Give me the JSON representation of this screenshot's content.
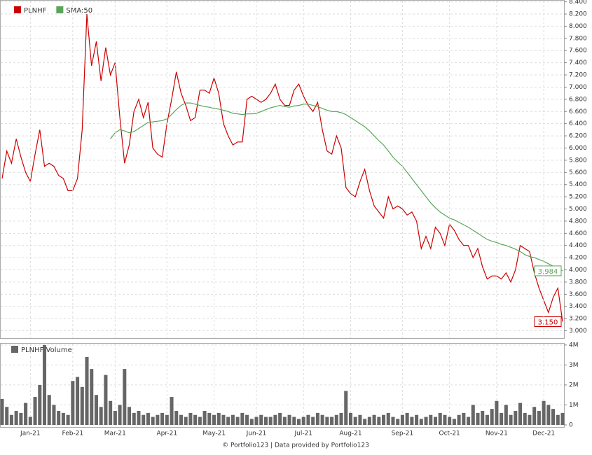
{
  "chart_data": [
    {
      "type": "line",
      "series": [
        {
          "name": "PLNHF",
          "color": "#cc0000",
          "values": [
            5.5,
            5.95,
            5.75,
            6.15,
            5.85,
            5.6,
            5.45,
            5.9,
            6.3,
            5.7,
            5.75,
            5.7,
            5.55,
            5.5,
            5.3,
            5.3,
            5.5,
            6.3,
            8.2,
            7.35,
            7.75,
            7.1,
            7.65,
            7.2,
            7.4,
            6.5,
            5.75,
            6.05,
            6.6,
            6.8,
            6.5,
            6.75,
            6.0,
            5.9,
            5.85,
            6.4,
            6.8,
            7.25,
            6.9,
            6.7,
            6.45,
            6.5,
            6.95,
            6.95,
            6.9,
            7.15,
            6.9,
            6.4,
            6.2,
            6.05,
            6.1,
            6.1,
            6.8,
            6.85,
            6.8,
            6.75,
            6.8,
            6.9,
            7.05,
            6.8,
            6.7,
            6.7,
            6.95,
            7.05,
            6.85,
            6.7,
            6.6,
            6.75,
            6.3,
            5.95,
            5.9,
            6.2,
            6.0,
            5.35,
            5.25,
            5.2,
            5.45,
            5.65,
            5.3,
            5.05,
            4.95,
            4.85,
            5.2,
            5.0,
            5.05,
            5.0,
            4.9,
            4.95,
            4.8,
            4.35,
            4.55,
            4.35,
            4.7,
            4.6,
            4.4,
            4.75,
            4.65,
            4.5,
            4.4,
            4.4,
            4.2,
            4.35,
            4.05,
            3.85,
            3.9,
            3.9,
            3.85,
            3.95,
            3.8,
            4.0,
            4.4,
            4.35,
            4.3,
            3.95,
            3.7,
            3.5,
            3.3,
            3.55,
            3.7,
            3.15
          ],
          "value_labels": [
            null,
            null,
            null,
            null,
            null,
            null,
            null,
            null,
            null,
            null,
            null,
            null,
            null,
            null,
            null,
            null,
            null,
            null,
            null,
            null,
            null,
            null,
            null,
            null,
            null,
            null,
            null,
            null,
            null,
            null,
            null,
            null,
            null,
            null,
            null,
            null,
            null,
            null,
            null,
            null,
            null,
            null,
            null,
            null,
            null,
            null,
            null,
            null,
            null,
            null,
            null,
            null,
            null,
            null,
            null,
            null,
            null,
            null,
            null,
            null,
            null,
            null,
            null,
            null,
            null,
            null,
            null,
            null,
            null,
            null,
            null,
            null,
            null,
            null,
            null,
            null,
            null,
            null,
            null,
            null,
            null,
            null,
            null,
            null,
            null,
            null,
            null,
            null,
            null,
            null,
            null,
            null,
            null,
            null,
            null,
            null,
            null,
            null,
            null,
            null,
            null,
            null,
            null,
            null,
            null,
            null,
            null,
            null,
            null,
            null,
            null,
            null,
            null,
            null,
            null,
            null,
            null,
            null,
            null,
            "3.150"
          ]
        },
        {
          "name": "SMA:50",
          "color": "#5aa55a",
          "values": [
            null,
            null,
            null,
            null,
            null,
            null,
            null,
            null,
            null,
            null,
            null,
            null,
            null,
            null,
            null,
            null,
            null,
            null,
            null,
            null,
            null,
            null,
            null,
            6.15,
            6.25,
            6.3,
            6.28,
            6.25,
            6.27,
            6.32,
            6.37,
            6.42,
            6.43,
            6.44,
            6.45,
            6.48,
            6.55,
            6.63,
            6.7,
            6.74,
            6.74,
            6.72,
            6.7,
            6.68,
            6.67,
            6.65,
            6.64,
            6.62,
            6.6,
            6.57,
            6.56,
            6.55,
            6.56,
            6.56,
            6.57,
            6.6,
            6.63,
            6.66,
            6.68,
            6.7,
            6.68,
            6.67,
            6.69,
            6.7,
            6.72,
            6.72,
            6.7,
            6.68,
            6.65,
            6.62,
            6.6,
            6.6,
            6.58,
            6.55,
            6.5,
            6.45,
            6.4,
            6.35,
            6.28,
            6.2,
            6.12,
            6.05,
            5.95,
            5.85,
            5.77,
            5.7,
            5.6,
            5.5,
            5.4,
            5.3,
            5.2,
            5.1,
            5.02,
            4.95,
            4.9,
            4.85,
            4.82,
            4.78,
            4.74,
            4.7,
            4.65,
            4.6,
            4.55,
            4.5,
            4.47,
            4.45,
            4.42,
            4.4,
            4.37,
            4.34,
            4.3,
            4.25,
            4.22,
            4.2,
            4.17,
            4.14,
            4.1,
            4.06,
            4.03,
            3.984
          ],
          "value_labels": [
            null,
            null,
            null,
            null,
            null,
            null,
            null,
            null,
            null,
            null,
            null,
            null,
            null,
            null,
            null,
            null,
            null,
            null,
            null,
            null,
            null,
            null,
            null,
            null,
            null,
            null,
            null,
            null,
            null,
            null,
            null,
            null,
            null,
            null,
            null,
            null,
            null,
            null,
            null,
            null,
            null,
            null,
            null,
            null,
            null,
            null,
            null,
            null,
            null,
            null,
            null,
            null,
            null,
            null,
            null,
            null,
            null,
            null,
            null,
            null,
            null,
            null,
            null,
            null,
            null,
            null,
            null,
            null,
            null,
            null,
            null,
            null,
            null,
            null,
            null,
            null,
            null,
            null,
            null,
            null,
            null,
            null,
            null,
            null,
            null,
            null,
            null,
            null,
            null,
            null,
            null,
            null,
            null,
            null,
            null,
            null,
            null,
            null,
            null,
            null,
            null,
            null,
            null,
            null,
            null,
            null,
            null,
            null,
            null,
            null,
            null,
            null,
            null,
            null,
            null,
            null,
            null,
            null,
            null,
            "3.984"
          ]
        }
      ],
      "ylim": [
        2.88,
        8.43
      ],
      "yticks": [
        {
          "value": 3,
          "label": "3.000"
        },
        {
          "value": 3.2,
          "label": "3.200"
        },
        {
          "value": 3.4,
          "label": "3.400"
        },
        {
          "value": 3.6,
          "label": "3.600"
        },
        {
          "value": 3.8,
          "label": "3.800"
        },
        {
          "value": 4,
          "label": "4.000"
        },
        {
          "value": 4.2,
          "label": "4.200"
        },
        {
          "value": 4.4,
          "label": "4.400"
        },
        {
          "value": 4.6,
          "label": "4.600"
        },
        {
          "value": 4.8,
          "label": "4.800"
        },
        {
          "value": 5,
          "label": "5.000"
        },
        {
          "value": 5.2,
          "label": "5.200"
        },
        {
          "value": 5.4,
          "label": "5.400"
        },
        {
          "value": 5.6,
          "label": "5.600"
        },
        {
          "value": 5.8,
          "label": "5.800"
        },
        {
          "value": 6,
          "label": "6.000"
        },
        {
          "value": 6.2,
          "label": "6.200"
        },
        {
          "value": 6.4,
          "label": "6.400"
        },
        {
          "value": 6.6,
          "label": "6.600"
        },
        {
          "value": 6.8,
          "label": "6.800"
        },
        {
          "value": 7,
          "label": "7.000"
        },
        {
          "value": 7.2,
          "label": "7.200"
        },
        {
          "value": 7.4,
          "label": "7.400"
        },
        {
          "value": 7.6,
          "label": "7.600"
        },
        {
          "value": 7.8,
          "label": "7.800"
        },
        {
          "value": 8,
          "label": "8.000"
        },
        {
          "value": 8.2,
          "label": "8.200"
        },
        {
          "value": 8.4,
          "label": "8.400"
        }
      ],
      "grid": true
    },
    {
      "type": "bar",
      "categories": [
        null,
        null,
        null,
        null,
        null,
        null,
        "Jan-21",
        null,
        null,
        null,
        null,
        null,
        null,
        null,
        null,
        "Feb-21",
        null,
        null,
        null,
        null,
        null,
        null,
        null,
        null,
        "Mar-21",
        null,
        null,
        null,
        null,
        null,
        null,
        null,
        null,
        null,
        null,
        "Apr-21",
        null,
        null,
        null,
        null,
        null,
        null,
        null,
        null,
        null,
        "May-21",
        null,
        null,
        null,
        null,
        null,
        null,
        null,
        null,
        "Jun-21",
        null,
        null,
        null,
        null,
        null,
        null,
        null,
        null,
        null,
        "Jul-21",
        null,
        null,
        null,
        null,
        null,
        null,
        null,
        null,
        null,
        "Aug-21",
        null,
        null,
        null,
        null,
        null,
        null,
        null,
        null,
        null,
        null,
        "Sep-21",
        null,
        null,
        null,
        null,
        null,
        null,
        null,
        null,
        null,
        "Oct-21",
        null,
        null,
        null,
        null,
        null,
        null,
        null,
        null,
        null,
        "Nov-21",
        null,
        null,
        null,
        null,
        null,
        null,
        null,
        null,
        null,
        "Dec-21",
        null,
        null,
        null,
        null
      ],
      "series": [
        {
          "name": "PLNHF Volume",
          "color": "#666666",
          "values": [
            1300000,
            900000,
            500000,
            700000,
            600000,
            1100000,
            400000,
            1400000,
            2000000,
            4000000,
            1500000,
            1000000,
            700000,
            600000,
            500000,
            2200000,
            2400000,
            1900000,
            3400000,
            2800000,
            1500000,
            900000,
            2500000,
            1200000,
            700000,
            1000000,
            2800000,
            900000,
            600000,
            700000,
            500000,
            600000,
            400000,
            500000,
            600000,
            500000,
            1400000,
            700000,
            500000,
            400000,
            600000,
            500000,
            400000,
            700000,
            600000,
            500000,
            600000,
            500000,
            400000,
            500000,
            400000,
            600000,
            500000,
            300000,
            400000,
            500000,
            400000,
            400000,
            500000,
            600000,
            400000,
            500000,
            400000,
            300000,
            400000,
            500000,
            400000,
            600000,
            500000,
            400000,
            400000,
            500000,
            600000,
            1700000,
            600000,
            400000,
            500000,
            300000,
            400000,
            500000,
            400000,
            500000,
            600000,
            400000,
            300000,
            500000,
            600000,
            400000,
            500000,
            300000,
            400000,
            500000,
            400000,
            600000,
            500000,
            400000,
            300000,
            500000,
            600000,
            400000,
            1000000,
            600000,
            700000,
            500000,
            800000,
            1200000,
            600000,
            1000000,
            500000,
            700000,
            1100000,
            600000,
            500000,
            900000,
            700000,
            1200000,
            1000000,
            800000,
            500000,
            600000
          ]
        }
      ],
      "ylim": [
        0,
        4100000
      ],
      "yticks": [
        0,
        {
          "value": 1000000,
          "label": "1M"
        },
        {
          "value": 2000000,
          "label": "2M"
        },
        {
          "value": 3000000,
          "label": "3M"
        },
        {
          "value": 4000000,
          "label": "4M"
        }
      ],
      "grid": true
    }
  ],
  "footer": "© Portfolio123 | Data provided by Portfolio123"
}
